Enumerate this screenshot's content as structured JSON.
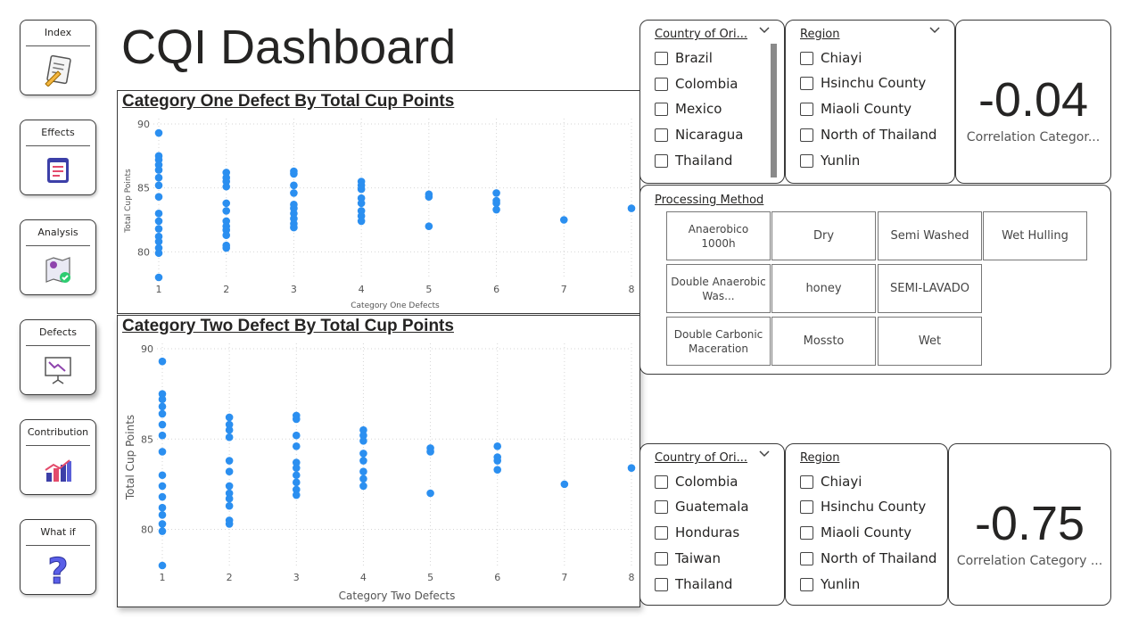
{
  "title": "CQI Dashboard",
  "nav": [
    {
      "label": "Index",
      "icon": "checklist-icon"
    },
    {
      "label": "Effects",
      "icon": "document-list-icon"
    },
    {
      "label": "Analysis",
      "icon": "map-check-icon"
    },
    {
      "label": "Defects",
      "icon": "presentation-chart-icon"
    },
    {
      "label": "Contribution",
      "icon": "bar-growth-icon"
    },
    {
      "label": "What if",
      "icon": "question-mark-icon"
    }
  ],
  "chart1": {
    "title": "Category One Defect By Total Cup Points"
  },
  "chart2": {
    "title": "Category Two Defect By Total Cup Points"
  },
  "chart_data": [
    {
      "type": "scatter",
      "title": "Category One Defect By Total Cup Points",
      "xlabel": "Category One Defects",
      "ylabel": "Total Cup Points",
      "xticks": [
        "1",
        "2",
        "3",
        "4",
        "5",
        "6",
        "7",
        "8"
      ],
      "yticks": [
        "80",
        "85",
        "90"
      ],
      "xlim": [
        1,
        8
      ],
      "ylim": [
        78,
        90
      ],
      "grid": true,
      "color": "#2b8ff0",
      "points": [
        [
          1,
          89.3
        ],
        [
          1,
          87.5
        ],
        [
          1,
          87.2
        ],
        [
          1,
          86.8
        ],
        [
          1,
          86.4
        ],
        [
          1,
          85.8
        ],
        [
          1,
          85.2
        ],
        [
          1,
          84.3
        ],
        [
          1,
          83.0
        ],
        [
          1,
          82.4
        ],
        [
          1,
          81.8
        ],
        [
          1,
          81.2
        ],
        [
          1,
          80.8
        ],
        [
          1,
          80.3
        ],
        [
          1,
          79.9
        ],
        [
          1,
          78.0
        ],
        [
          2,
          86.2
        ],
        [
          2,
          85.8
        ],
        [
          2,
          85.5
        ],
        [
          2,
          85.1
        ],
        [
          2,
          83.8
        ],
        [
          2,
          83.2
        ],
        [
          2,
          82.4
        ],
        [
          2,
          82.0
        ],
        [
          2,
          81.7
        ],
        [
          2,
          81.3
        ],
        [
          2,
          80.5
        ],
        [
          2,
          80.3
        ],
        [
          3,
          86.3
        ],
        [
          3,
          86.1
        ],
        [
          3,
          85.2
        ],
        [
          3,
          84.6
        ],
        [
          3,
          83.7
        ],
        [
          3,
          83.4
        ],
        [
          3,
          83.0
        ],
        [
          3,
          82.6
        ],
        [
          3,
          82.2
        ],
        [
          3,
          81.9
        ],
        [
          4,
          85.5
        ],
        [
          4,
          85.2
        ],
        [
          4,
          84.9
        ],
        [
          4,
          84.2
        ],
        [
          4,
          83.8
        ],
        [
          4,
          83.2
        ],
        [
          4,
          82.8
        ],
        [
          4,
          82.4
        ],
        [
          5,
          84.5
        ],
        [
          5,
          84.3
        ],
        [
          5,
          82.0
        ],
        [
          6,
          84.6
        ],
        [
          6,
          84.0
        ],
        [
          6,
          83.8
        ],
        [
          6,
          83.3
        ],
        [
          7,
          82.5
        ],
        [
          8,
          83.4
        ]
      ]
    },
    {
      "type": "scatter",
      "title": "Category Two Defect By Total Cup Points",
      "xlabel": "Category Two Defects",
      "ylabel": "Total Cup Points",
      "xticks": [
        "1",
        "2",
        "3",
        "4",
        "5",
        "6",
        "7",
        "8"
      ],
      "yticks": [
        "80",
        "85",
        "90"
      ],
      "xlim": [
        1,
        8
      ],
      "ylim": [
        78,
        90
      ],
      "grid": true,
      "color": "#2b8ff0",
      "points": [
        [
          1,
          89.3
        ],
        [
          1,
          87.5
        ],
        [
          1,
          87.2
        ],
        [
          1,
          86.8
        ],
        [
          1,
          86.4
        ],
        [
          1,
          85.8
        ],
        [
          1,
          85.2
        ],
        [
          1,
          84.3
        ],
        [
          1,
          83.0
        ],
        [
          1,
          82.4
        ],
        [
          1,
          81.8
        ],
        [
          1,
          81.2
        ],
        [
          1,
          80.8
        ],
        [
          1,
          80.3
        ],
        [
          1,
          79.9
        ],
        [
          1,
          78.0
        ],
        [
          2,
          86.2
        ],
        [
          2,
          85.8
        ],
        [
          2,
          85.5
        ],
        [
          2,
          85.1
        ],
        [
          2,
          83.8
        ],
        [
          2,
          83.2
        ],
        [
          2,
          82.4
        ],
        [
          2,
          82.0
        ],
        [
          2,
          81.7
        ],
        [
          2,
          81.3
        ],
        [
          2,
          80.5
        ],
        [
          2,
          80.3
        ],
        [
          3,
          86.3
        ],
        [
          3,
          86.1
        ],
        [
          3,
          85.2
        ],
        [
          3,
          84.6
        ],
        [
          3,
          83.7
        ],
        [
          3,
          83.4
        ],
        [
          3,
          83.0
        ],
        [
          3,
          82.6
        ],
        [
          3,
          82.2
        ],
        [
          3,
          81.9
        ],
        [
          4,
          85.5
        ],
        [
          4,
          85.2
        ],
        [
          4,
          84.9
        ],
        [
          4,
          84.2
        ],
        [
          4,
          83.8
        ],
        [
          4,
          83.2
        ],
        [
          4,
          82.8
        ],
        [
          4,
          82.4
        ],
        [
          5,
          84.5
        ],
        [
          5,
          84.3
        ],
        [
          5,
          82.0
        ],
        [
          6,
          84.6
        ],
        [
          6,
          84.0
        ],
        [
          6,
          83.8
        ],
        [
          6,
          83.3
        ],
        [
          7,
          82.5
        ],
        [
          8,
          83.4
        ]
      ]
    }
  ],
  "slicer_country_1": {
    "header": "Country of Ori...",
    "items": [
      "Brazil",
      "Colombia",
      "Mexico",
      "Nicaragua",
      "Thailand"
    ]
  },
  "slicer_region_1": {
    "header": "Region",
    "items": [
      "Chiayi",
      "Hsinchu County",
      "Miaoli County",
      "North of Thailand",
      "Yunlin"
    ]
  },
  "card_1": {
    "value": "-0.04",
    "caption": "Correlation Categor..."
  },
  "processing": {
    "header": "Processing Method",
    "tiles": [
      "Anaerobico 1000h",
      "Dry",
      "Semi Washed",
      "Wet Hulling",
      "Double Anaerobic Was...",
      "honey",
      "SEMI-LAVADO",
      "Double Carbonic Maceration",
      "Mossto",
      "Wet"
    ]
  },
  "slicer_country_2": {
    "header": "Country of Ori...",
    "items": [
      "Colombia",
      "Guatemala",
      "Honduras",
      "Taiwan",
      "Thailand"
    ]
  },
  "slicer_region_2": {
    "header": "Region",
    "items": [
      "Chiayi",
      "Hsinchu County",
      "Miaoli County",
      "North of Thailand",
      "Yunlin"
    ]
  },
  "card_2": {
    "value": "-0.75",
    "caption": "Correlation Category ..."
  }
}
